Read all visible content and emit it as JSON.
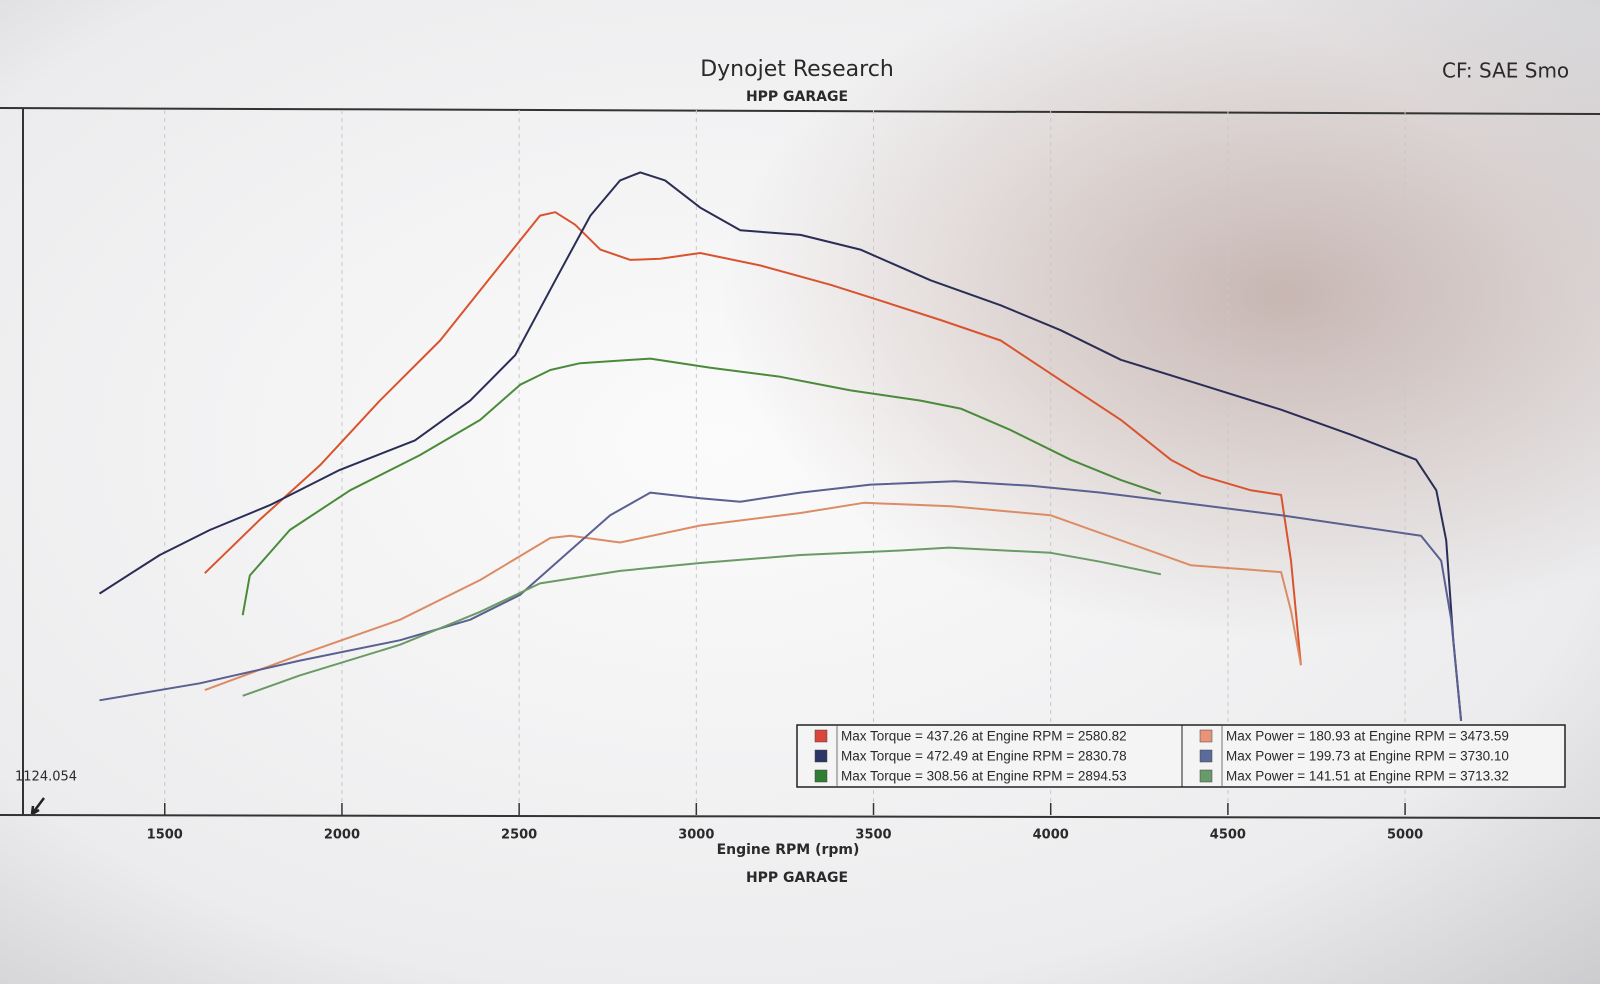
{
  "chart_data": {
    "type": "line",
    "title": "Dynojet Research",
    "subtitle": "HPP GARAGE",
    "corner_note": "CF: SAE Smo",
    "x_label": "Engine RPM (rpm)",
    "footer": "HPP GARAGE",
    "annotation": "1124.054",
    "xlim": [
      1100,
      5550
    ],
    "xticks": [
      1500,
      2000,
      2500,
      3000,
      3500,
      4000,
      4500,
      5000
    ],
    "ylim": [
      -94,
      527
    ],
    "grid": true,
    "legend_position": "bottom-right",
    "series": [
      {
        "name": "Max Torque = 437.26 at Engine RPM = 2580.82",
        "color": "#d9542e",
        "swatch": "#d9453a",
        "x": [
          1613,
          1768,
          1938,
          2107,
          2277,
          2446,
          2559,
          2602,
          2658,
          2729,
          2814,
          2898,
          3011,
          3181,
          3379,
          3520,
          3689,
          3859,
          4028,
          4198,
          4339,
          4424,
          4565,
          4650,
          4678,
          4706
        ],
        "values": [
          119,
          166,
          214,
          271,
          324,
          390,
          434,
          437,
          426,
          404,
          395,
          396,
          401,
          390,
          373,
          359,
          342,
          324,
          289,
          254,
          219,
          205,
          192,
          188,
          130,
          38
        ]
      },
      {
        "name": "Max Torque = 472.49 at Engine RPM = 2830.78",
        "color": "#2a2d55",
        "swatch": "#2c3566",
        "x": [
          1316,
          1486,
          1627,
          1797,
          1994,
          2206,
          2362,
          2489,
          2602,
          2701,
          2785,
          2842,
          2912,
          3011,
          3124,
          3294,
          3463,
          3661,
          3859,
          4028,
          4198,
          4424,
          4650,
          4847,
          5031,
          5088,
          5116,
          5136,
          5158
        ],
        "values": [
          101,
          135,
          157,
          179,
          210,
          236,
          271,
          311,
          377,
          434,
          465,
          472,
          465,
          441,
          421,
          417,
          404,
          377,
          355,
          333,
          307,
          285,
          263,
          241,
          219,
          192,
          148,
          60,
          -11
        ]
      },
      {
        "name": "Max Torque = 308.56 at Engine RPM = 2894.53",
        "color": "#4a8a3a",
        "swatch": "#2e7d32",
        "x": [
          1720,
          1740,
          1853,
          2023,
          2220,
          2390,
          2503,
          2588,
          2672,
          2870,
          3040,
          3237,
          3435,
          3633,
          3746,
          3887,
          4056,
          4198,
          4311
        ],
        "values": [
          82,
          117,
          157,
          192,
          223,
          254,
          285,
          298,
          304,
          308,
          300,
          292,
          280,
          271,
          264,
          245,
          219,
          201,
          189
        ]
      },
      {
        "name": "Max Power = 180.93 at Engine RPM = 3473.59",
        "color": "#dc8c64",
        "swatch": "#e8937a",
        "x": [
          1613,
          1881,
          2164,
          2390,
          2588,
          2644,
          2785,
          3011,
          3294,
          3473,
          3718,
          4000,
          4198,
          4395,
          4565,
          4650,
          4678,
          4706
        ],
        "values": [
          16,
          47,
          78,
          113,
          150,
          152,
          146,
          161,
          172,
          181,
          178,
          170,
          148,
          126,
          122,
          120,
          86,
          38
        ]
      },
      {
        "name": "Max Power = 199.73 at Engine RPM = 3730.10",
        "color": "#5a6090",
        "swatch": "#5a6a9a",
        "x": [
          1316,
          1599,
          1881,
          2164,
          2362,
          2503,
          2644,
          2757,
          2870,
          3011,
          3124,
          3294,
          3492,
          3730,
          3944,
          4141,
          4424,
          4650,
          5045,
          5102,
          5130,
          5158
        ],
        "values": [
          7,
          22,
          42,
          60,
          78,
          100,
          139,
          170,
          190,
          185,
          182,
          190,
          197,
          200,
          196,
          190,
          179,
          170,
          152,
          130,
          78,
          -11
        ]
      },
      {
        "name": "Max Power = 141.51 at Engine RPM = 3713.32",
        "color": "#6a9a66",
        "swatch": "#6a9a6a",
        "x": [
          1720,
          1881,
          2164,
          2390,
          2559,
          2785,
          3011,
          3294,
          3576,
          3713,
          4000,
          4141,
          4311
        ],
        "values": [
          11,
          29,
          56,
          85,
          110,
          121,
          128,
          135,
          139,
          141.5,
          137,
          129,
          118
        ]
      }
    ]
  }
}
